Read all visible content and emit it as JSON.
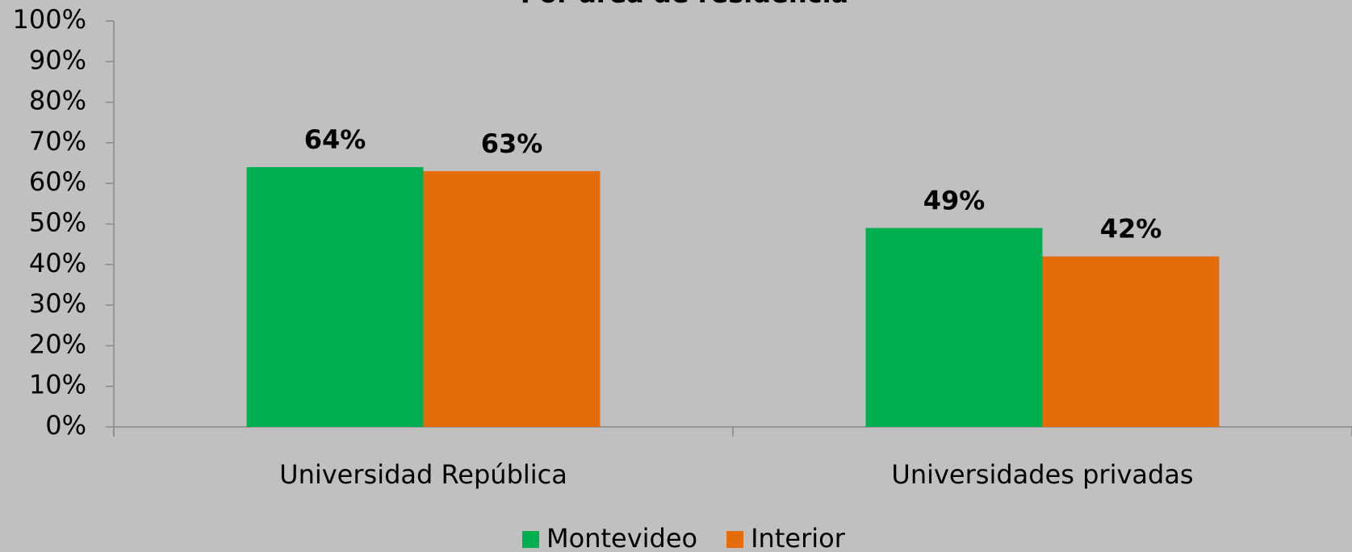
{
  "chart_data": {
    "type": "bar",
    "title": "Por área de residencia",
    "categories": [
      "Universidad República",
      "Universidades privadas"
    ],
    "series": [
      {
        "name": "Montevideo",
        "color": "#00b050",
        "values": [
          64,
          49
        ],
        "value_labels": [
          "64%",
          "49%"
        ]
      },
      {
        "name": "Interior",
        "color": "#e46c0a",
        "values": [
          63,
          42
        ],
        "value_labels": [
          "63%",
          "42%"
        ]
      }
    ],
    "ylim": [
      0,
      100
    ],
    "yticks": [
      {
        "value": 0,
        "label": "0%"
      },
      {
        "value": 10,
        "label": "10%"
      },
      {
        "value": 20,
        "label": "20%"
      },
      {
        "value": 30,
        "label": "30%"
      },
      {
        "value": 40,
        "label": "40%"
      },
      {
        "value": 50,
        "label": "50%"
      },
      {
        "value": 60,
        "label": "60%"
      },
      {
        "value": 70,
        "label": "70%"
      },
      {
        "value": 80,
        "label": "80%"
      },
      {
        "value": 90,
        "label": "90%"
      },
      {
        "value": 100,
        "label": "100%"
      }
    ],
    "grid": false,
    "legend": "bottom"
  }
}
